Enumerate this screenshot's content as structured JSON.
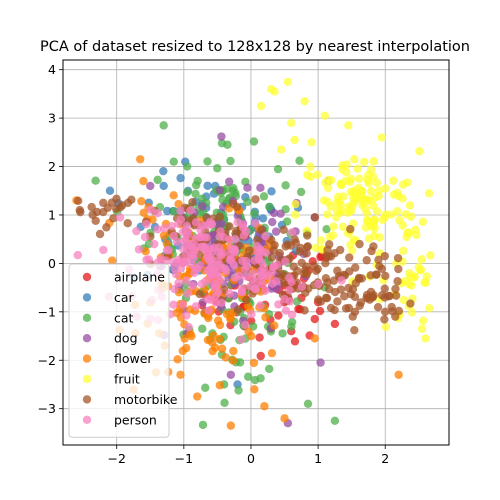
{
  "chart_data": {
    "type": "scatter",
    "title": "PCA of dataset resized to 128x128 by nearest interpolation",
    "xlabel": "",
    "ylabel": "",
    "xlim": [
      -2.8,
      2.95
    ],
    "ylim": [
      -3.75,
      4.2
    ],
    "xticks": [
      -2,
      -1,
      0,
      1,
      2
    ],
    "yticks": [
      -3,
      -2,
      -1,
      0,
      1,
      2,
      3,
      4
    ],
    "xtick_labels": [
      "−2",
      "−1",
      "0",
      "1",
      "2"
    ],
    "ytick_labels": [
      "−3",
      "−2",
      "−1",
      "0",
      "1",
      "2",
      "3",
      "4"
    ],
    "grid": true,
    "legend_position": "lower-left",
    "marker_alpha": 0.75,
    "series": [
      {
        "name": "airplane",
        "color": "#e41a1c",
        "clusters": [
          {
            "cx": 0.3,
            "cy": -0.6,
            "sx": 0.5,
            "sy": 0.5,
            "n": 60
          }
        ],
        "points": [
          [
            1.0,
            -0.8
          ],
          [
            1.25,
            -1.25
          ],
          [
            0.95,
            -1.15
          ],
          [
            0.6,
            -1.4
          ]
        ]
      },
      {
        "name": "car",
        "color": "#377eb8",
        "clusters": [
          {
            "cx": -0.6,
            "cy": 0.6,
            "sx": 0.6,
            "sy": 0.6,
            "n": 90
          }
        ],
        "points": [
          [
            -2.1,
            1.5
          ],
          [
            0.7,
            1.15
          ],
          [
            -0.2,
            -2.5
          ],
          [
            0.3,
            1.1
          ],
          [
            -1.3,
            1.6
          ]
        ]
      },
      {
        "name": "cat",
        "color": "#4daf4a",
        "clusters": [
          {
            "cx": -0.4,
            "cy": 0.9,
            "sx": 0.55,
            "sy": 0.7,
            "n": 110
          },
          {
            "cx": -0.2,
            "cy": -1.3,
            "sx": 0.5,
            "sy": 0.6,
            "n": 50
          }
        ],
        "points": [
          [
            -1.3,
            2.85
          ],
          [
            1.25,
            -3.25
          ],
          [
            0.85,
            -2.9
          ],
          [
            -0.35,
            2.45
          ],
          [
            -1.15,
            2.1
          ],
          [
            -0.4,
            -2.5
          ],
          [
            -0.95,
            2.0
          ]
        ]
      },
      {
        "name": "dog",
        "color": "#984ea3",
        "clusters": [
          {
            "cx": -0.2,
            "cy": 0.0,
            "sx": 0.55,
            "sy": 0.8,
            "n": 90
          }
        ],
        "points": [
          [
            0.55,
            -3.3
          ],
          [
            0.95,
            0.95
          ],
          [
            -0.3,
            -2.3
          ],
          [
            1.15,
            1.7
          ],
          [
            -1.5,
            1.6
          ]
        ]
      },
      {
        "name": "flower",
        "color": "#ff7f00",
        "clusters": [
          {
            "cx": -0.5,
            "cy": -0.7,
            "sx": 0.55,
            "sy": 0.75,
            "n": 120
          },
          {
            "cx": -1.3,
            "cy": 0.8,
            "sx": 0.35,
            "sy": 0.4,
            "n": 20
          }
        ],
        "points": [
          [
            2.2,
            -2.3
          ],
          [
            0.5,
            -3.2
          ],
          [
            -0.3,
            -3.35
          ],
          [
            0.2,
            -2.95
          ],
          [
            -1.65,
            2.15
          ],
          [
            -0.8,
            -2.75
          ],
          [
            -2.6,
            1.3
          ],
          [
            -1.05,
            -2.3
          ],
          [
            0.95,
            -1.55
          ],
          [
            0.05,
            -2.6
          ]
        ]
      },
      {
        "name": "fruit",
        "color": "#ffff33",
        "clusters": [
          {
            "cx": 1.6,
            "cy": 1.2,
            "sx": 0.45,
            "sy": 0.55,
            "n": 130
          },
          {
            "cx": 2.35,
            "cy": -0.4,
            "sx": 0.2,
            "sy": 0.55,
            "n": 35
          }
        ],
        "points": [
          [
            0.55,
            3.75
          ],
          [
            0.35,
            3.55
          ],
          [
            0.8,
            3.35
          ],
          [
            1.1,
            3.05
          ],
          [
            0.6,
            2.9
          ],
          [
            0.15,
            3.25
          ],
          [
            1.45,
            2.85
          ],
          [
            0.45,
            2.35
          ],
          [
            2.6,
            -1.55
          ],
          [
            2.55,
            -1.35
          ],
          [
            0.65,
            2.55
          ],
          [
            1.95,
            2.6
          ],
          [
            0.3,
            3.6
          ],
          [
            0.9,
            2.5
          ]
        ]
      },
      {
        "name": "motorbike",
        "color": "#a65628",
        "clusters": [
          {
            "cx": 0.6,
            "cy": -0.1,
            "sx": 0.55,
            "sy": 0.45,
            "n": 110
          },
          {
            "cx": 1.7,
            "cy": -0.6,
            "sx": 0.35,
            "sy": 0.35,
            "n": 50
          },
          {
            "cx": -0.6,
            "cy": 0.5,
            "sx": 0.4,
            "sy": 0.4,
            "n": 60
          },
          {
            "cx": -2.1,
            "cy": 1.05,
            "sx": 0.25,
            "sy": 0.2,
            "n": 20
          }
        ],
        "points": [
          [
            2.15,
            -1.1
          ],
          [
            2.0,
            -1.0
          ],
          [
            1.55,
            -1.0
          ],
          [
            -2.55,
            1.1
          ],
          [
            -2.2,
            1.25
          ]
        ]
      },
      {
        "name": "person",
        "color": "#f781bf",
        "clusters": [
          {
            "cx": -0.7,
            "cy": 0.1,
            "sx": 0.5,
            "sy": 0.45,
            "n": 170
          },
          {
            "cx": 0.3,
            "cy": -0.4,
            "sx": 0.35,
            "sy": 0.4,
            "n": 40
          }
        ],
        "points": [
          [
            -1.7,
            -1.1
          ],
          [
            -1.2,
            -1.05
          ],
          [
            -1.95,
            0.95
          ],
          [
            -0.6,
            -0.75
          ],
          [
            1.35,
            -0.35
          ],
          [
            -1.5,
            -1.15
          ]
        ]
      }
    ]
  }
}
